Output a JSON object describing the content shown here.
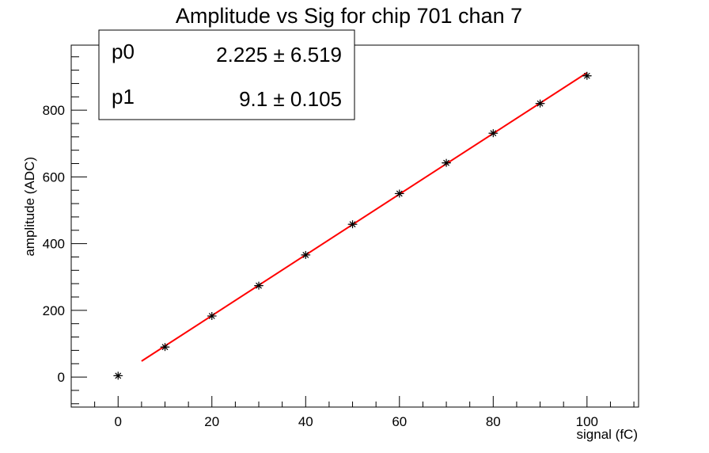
{
  "chart_data": {
    "type": "scatter",
    "title": "Amplitude vs Sig for chip 701 chan 7",
    "xlabel": "signal (fC)",
    "ylabel": "amplitude (ADC)",
    "xlim": [
      -10,
      111
    ],
    "ylim": [
      -90,
      995
    ],
    "x_ticks": [
      0,
      20,
      40,
      60,
      80,
      100
    ],
    "y_ticks": [
      0,
      200,
      400,
      600,
      800
    ],
    "x_tick_labels": [
      "0",
      "20",
      "40",
      "60",
      "80",
      "100"
    ],
    "y_tick_labels": [
      "0",
      "200",
      "400",
      "600",
      "800"
    ],
    "series": [
      {
        "x": [
          0,
          10,
          20,
          30,
          40,
          50,
          60,
          70,
          80,
          90,
          100
        ],
        "y": [
          4,
          90,
          183,
          274,
          366,
          458,
          550,
          642,
          731,
          820,
          903
        ],
        "x_err": 1,
        "y_err": 4,
        "marker": "star",
        "color": "#000000"
      }
    ],
    "fit": {
      "function": "p0 + p1*x",
      "x_range": [
        5,
        100
      ],
      "color": "#ff0000"
    },
    "stats_box": {
      "rows": [
        {
          "name": "p0",
          "value": "2.225 ± 6.519"
        },
        {
          "name": "p1",
          "value": "9.1 ± 0.105"
        }
      ],
      "placement": "top-left"
    },
    "grid": false
  }
}
